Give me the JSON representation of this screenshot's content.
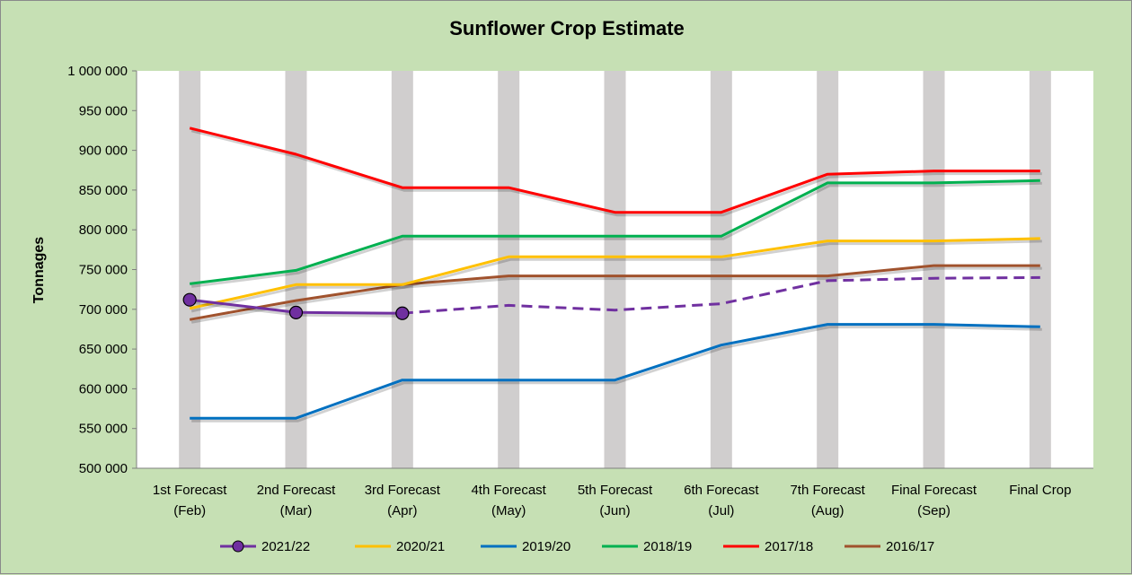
{
  "chart_data": {
    "type": "line",
    "title": "Sunflower Crop Estimate",
    "ylabel": "Tonnages",
    "xlabel": "",
    "ylim": [
      500000,
      1000000
    ],
    "yticks": [
      500000,
      550000,
      600000,
      650000,
      700000,
      750000,
      800000,
      850000,
      900000,
      950000,
      1000000
    ],
    "ytick_labels": [
      "500 000",
      "550 000",
      "600 000",
      "650 000",
      "700 000",
      "750 000",
      "800 000",
      "850 000",
      "900 000",
      "950 000",
      "1 000 000"
    ],
    "categories": [
      [
        "1st Forecast",
        "(Feb)"
      ],
      [
        "2nd Forecast",
        "(Mar)"
      ],
      [
        "3rd Forecast",
        "(Apr)"
      ],
      [
        "4th Forecast",
        "(May)"
      ],
      [
        "5th Forecast",
        "(Jun)"
      ],
      [
        "6th Forecast",
        "(Jul)"
      ],
      [
        "7th Forecast",
        "(Aug)"
      ],
      [
        "Final Forecast",
        "(Sep)"
      ],
      [
        "Final Crop",
        ""
      ]
    ],
    "legend_position": "bottom",
    "series": [
      {
        "name": "2021/22",
        "color": "#7030a0",
        "marker": true,
        "values": [
          712000,
          696000,
          695000,
          null,
          null,
          null,
          null,
          null,
          null
        ],
        "projection": [
          null,
          null,
          695000,
          705000,
          699000,
          707000,
          736000,
          739000,
          740000
        ]
      },
      {
        "name": "2020/21",
        "color": "#ffc000",
        "values": [
          701000,
          731000,
          731000,
          766000,
          766000,
          766000,
          786000,
          786000,
          789000
        ]
      },
      {
        "name": "2019/20",
        "color": "#0070c0",
        "values": [
          563000,
          563000,
          611000,
          611000,
          611000,
          655000,
          681000,
          681000,
          678000
        ]
      },
      {
        "name": "2018/19",
        "color": "#00b050",
        "values": [
          732000,
          749000,
          792000,
          792000,
          792000,
          792000,
          859000,
          859000,
          862000
        ]
      },
      {
        "name": "2017/18",
        "color": "#ff0000",
        "values": [
          928000,
          895000,
          853000,
          853000,
          822000,
          822000,
          870000,
          874000,
          874000
        ]
      },
      {
        "name": "2016/17",
        "color": "#a0522d",
        "values": [
          687000,
          711000,
          731000,
          742000,
          742000,
          742000,
          742000,
          755000,
          755000
        ]
      }
    ]
  }
}
